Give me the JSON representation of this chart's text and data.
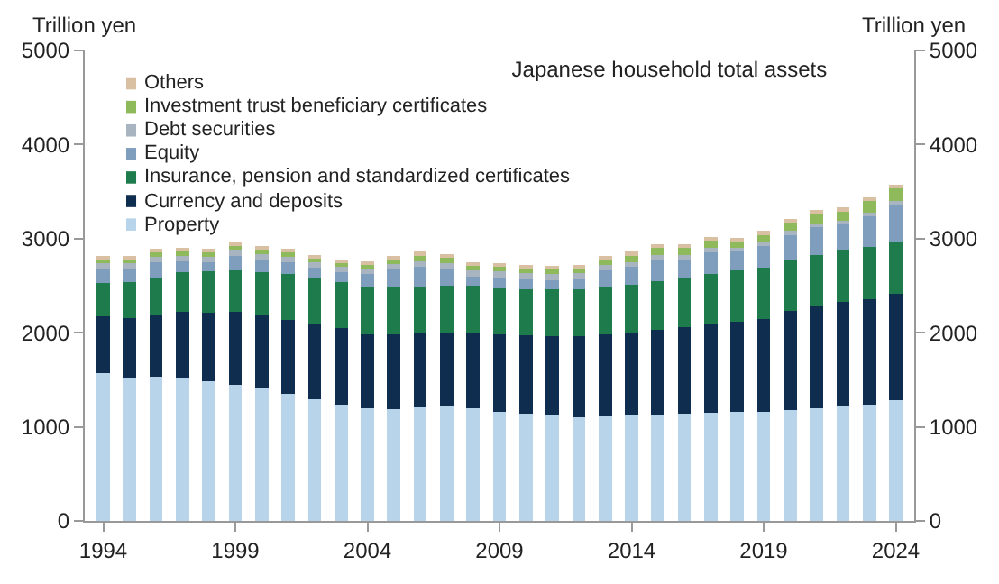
{
  "chart_data": {
    "type": "bar",
    "stacked": true,
    "title": "Japanese household total assets",
    "ylabel": "Trillion yen",
    "y2label": "Trillion yen",
    "x": [
      1994,
      1995,
      1996,
      1997,
      1998,
      1999,
      2000,
      2001,
      2002,
      2003,
      2004,
      2005,
      2006,
      2007,
      2008,
      2009,
      2010,
      2011,
      2012,
      2013,
      2014,
      2015,
      2016,
      2017,
      2018,
      2019,
      2020,
      2021,
      2022,
      2023,
      2024
    ],
    "xlim": [
      1993.3,
      2024.7
    ],
    "xticks": [
      1994,
      1999,
      2004,
      2009,
      2014,
      2019,
      2024
    ],
    "ylim": [
      0,
      5000
    ],
    "yticks": [
      0,
      1000,
      2000,
      3000,
      4000,
      5000
    ],
    "y2lim": [
      0,
      5000
    ],
    "y2ticks": [
      0,
      1000,
      2000,
      3000,
      4000,
      5000
    ],
    "legend": "top left",
    "series": [
      {
        "name": "Property",
        "color": "#b7d4ea",
        "values": [
          1570,
          1520,
          1530,
          1520,
          1480,
          1450,
          1410,
          1350,
          1290,
          1240,
          1200,
          1190,
          1210,
          1220,
          1200,
          1160,
          1140,
          1120,
          1100,
          1110,
          1120,
          1130,
          1140,
          1150,
          1160,
          1160,
          1180,
          1200,
          1220,
          1240,
          1280
        ]
      },
      {
        "name": "Currency and deposits",
        "color": "#0f2d4f",
        "values": [
          600,
          640,
          660,
          700,
          730,
          770,
          770,
          790,
          800,
          810,
          780,
          790,
          780,
          780,
          800,
          820,
          830,
          840,
          860,
          870,
          880,
          900,
          920,
          940,
          960,
          990,
          1050,
          1080,
          1110,
          1120,
          1130
        ]
      },
      {
        "name": "Insurance, pension and standardized certificates",
        "color": "#1e7b4b",
        "values": [
          360,
          380,
          400,
          420,
          440,
          440,
          460,
          480,
          490,
          490,
          500,
          500,
          500,
          500,
          500,
          490,
          490,
          500,
          500,
          510,
          510,
          520,
          520,
          530,
          540,
          540,
          550,
          550,
          550,
          550,
          560
        ]
      },
      {
        "name": "Equity",
        "color": "#7f9ebe",
        "values": [
          150,
          140,
          160,
          120,
          100,
          160,
          140,
          130,
          110,
          100,
          140,
          190,
          210,
          180,
          100,
          120,
          110,
          100,
          110,
          170,
          190,
          230,
          200,
          230,
          200,
          230,
          260,
          290,
          270,
          330,
          380
        ]
      },
      {
        "name": "Debt securities",
        "color": "#a8b4c0",
        "values": [
          60,
          60,
          60,
          60,
          60,
          60,
          60,
          60,
          60,
          60,
          60,
          60,
          60,
          60,
          60,
          60,
          60,
          60,
          60,
          60,
          50,
          50,
          50,
          50,
          40,
          40,
          40,
          40,
          40,
          40,
          50
        ]
      },
      {
        "name": "Investment trust beneficiary certificates",
        "color": "#8fba5c",
        "values": [
          40,
          40,
          40,
          40,
          40,
          40,
          40,
          40,
          40,
          40,
          40,
          50,
          60,
          60,
          50,
          50,
          50,
          50,
          50,
          60,
          70,
          70,
          70,
          80,
          70,
          80,
          90,
          100,
          100,
          120,
          130
        ]
      },
      {
        "name": "Others",
        "color": "#d9c0a2",
        "values": [
          40,
          40,
          40,
          40,
          40,
          40,
          40,
          40,
          40,
          40,
          40,
          40,
          40,
          40,
          40,
          40,
          40,
          40,
          40,
          40,
          40,
          40,
          40,
          40,
          40,
          40,
          40,
          40,
          40,
          40,
          40
        ]
      }
    ]
  }
}
